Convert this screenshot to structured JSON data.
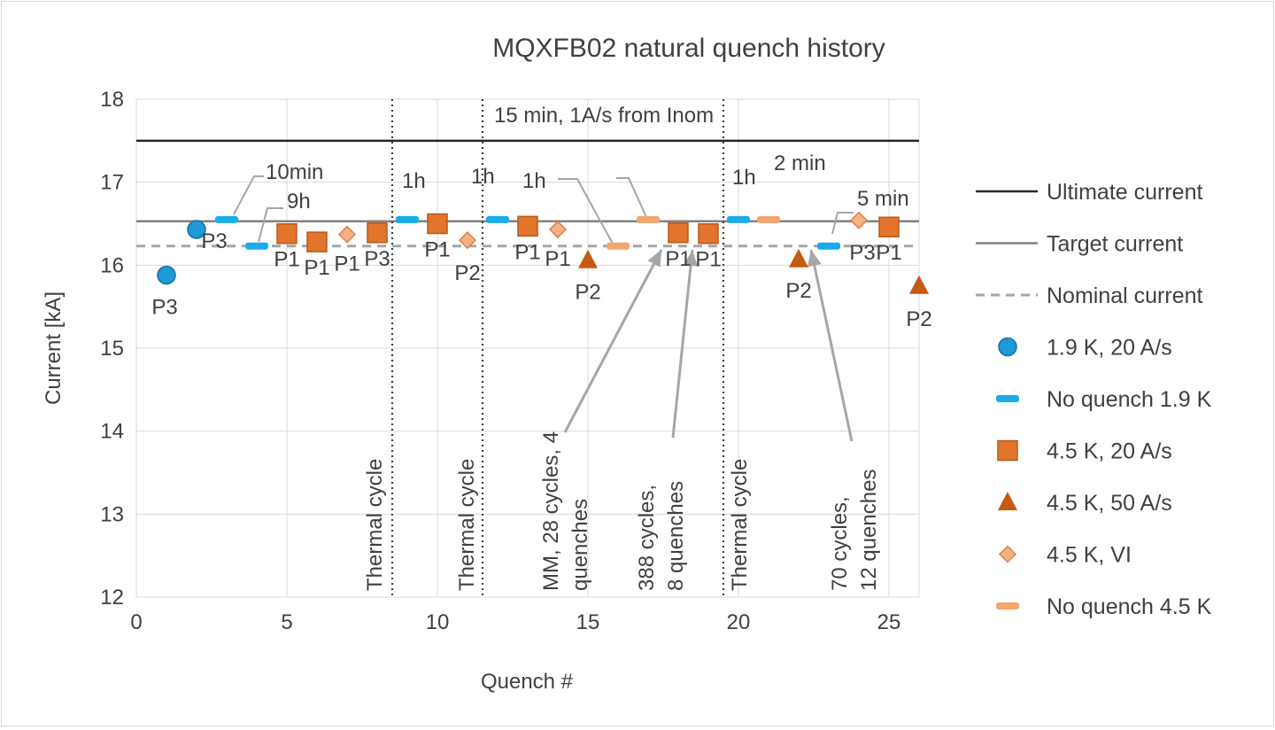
{
  "chart_data": {
    "type": "scatter",
    "title": "MQXFB02 natural quench history",
    "xlabel": "Quench #",
    "ylabel": "Current [kA]",
    "xlim": [
      0,
      26
    ],
    "ylim": [
      12,
      18
    ],
    "xticks": [
      0,
      5,
      10,
      15,
      20,
      25
    ],
    "yticks": [
      12,
      13,
      14,
      15,
      16,
      17,
      18
    ],
    "grid": true,
    "legend_position": "right",
    "reference_lines": [
      {
        "name": "Ultimate current",
        "y": 17.5,
        "style": "solid",
        "color": "#262626"
      },
      {
        "name": "Target current",
        "y": 16.53,
        "style": "solid",
        "color": "#808080"
      },
      {
        "name": "Nominal current",
        "y": 16.23,
        "style": "dashed",
        "color": "#a6a6a6"
      }
    ],
    "thermal_cycle_x": [
      8.5,
      11.5,
      19.5
    ],
    "thermal_cycle_label": "Thermal cycle",
    "series": [
      {
        "name": "1.9 K, 20 A/s",
        "marker": "circle",
        "color": "#1e9ad6",
        "points": [
          {
            "x": 1,
            "y": 15.88,
            "label": "P3"
          },
          {
            "x": 2,
            "y": 16.43,
            "label": "P3"
          }
        ]
      },
      {
        "name": "No quench 1.9 K",
        "marker": "dash",
        "color": "#1aabea",
        "points": [
          {
            "x": 3,
            "y": 16.55
          },
          {
            "x": 4,
            "y": 16.23
          },
          {
            "x": 9,
            "y": 16.55
          },
          {
            "x": 12,
            "y": 16.55
          },
          {
            "x": 20,
            "y": 16.55
          },
          {
            "x": 23,
            "y": 16.23
          }
        ]
      },
      {
        "name": "4.5 K, 20 A/s",
        "marker": "square",
        "color": "#e2742c",
        "points": [
          {
            "x": 5,
            "y": 16.38,
            "label": "P1"
          },
          {
            "x": 6,
            "y": 16.28,
            "label": "P1"
          },
          {
            "x": 8,
            "y": 16.39,
            "label": "P3"
          },
          {
            "x": 10,
            "y": 16.5,
            "label": "P1"
          },
          {
            "x": 13,
            "y": 16.47,
            "label": "P1"
          },
          {
            "x": 18,
            "y": 16.39,
            "label": "P1"
          },
          {
            "x": 19,
            "y": 16.38,
            "label": "P1"
          },
          {
            "x": 25,
            "y": 16.46,
            "label": "P1"
          }
        ]
      },
      {
        "name": "4.5 K, 50 A/s",
        "marker": "triangle",
        "color": "#c55a11",
        "points": [
          {
            "x": 15,
            "y": 16.06,
            "label": "P2"
          },
          {
            "x": 22,
            "y": 16.07,
            "label": "P2"
          },
          {
            "x": 26,
            "y": 15.75,
            "label": "P2"
          }
        ]
      },
      {
        "name": "4.5 K, VI",
        "marker": "diamond",
        "color": "#f4b183",
        "points": [
          {
            "x": 7,
            "y": 16.37,
            "label": "P1"
          },
          {
            "x": 11,
            "y": 16.3,
            "label": "P2"
          },
          {
            "x": 14,
            "y": 16.43,
            "label": "P1"
          },
          {
            "x": 24,
            "y": 16.54,
            "label": "P3"
          }
        ]
      },
      {
        "name": "No quench 4.5 K",
        "marker": "dash",
        "color": "#f4a46e",
        "points": [
          {
            "x": 16,
            "y": 16.23
          },
          {
            "x": 17,
            "y": 16.55
          },
          {
            "x": 21,
            "y": 16.55
          }
        ]
      }
    ],
    "hold_annotations": [
      "10min",
      "9h",
      "1h",
      "1h",
      "1h",
      "15 min, 1A/s from Inom",
      "1h",
      "2 min",
      "5 min"
    ],
    "cycle_annotations": [
      "MM, 28 cycles, 4 quenches",
      "388 cycles, 8 quenches",
      "70 cycles, 12 quenches"
    ]
  }
}
